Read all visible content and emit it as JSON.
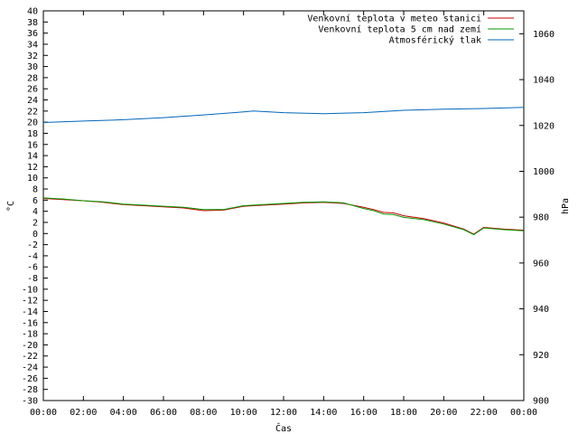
{
  "chart_data": {
    "type": "line",
    "title": "",
    "xlabel": "Čas",
    "ylabel_left": "°C",
    "ylabel_right": "hPa",
    "ylim_left": [
      -30,
      40
    ],
    "ylim_right": [
      900,
      1070
    ],
    "xlim_hours": [
      0,
      24
    ],
    "grid": false,
    "legend_position": "top-right",
    "x_ticks": [
      "00:00",
      "02:00",
      "04:00",
      "06:00",
      "08:00",
      "10:00",
      "12:00",
      "14:00",
      "16:00",
      "18:00",
      "20:00",
      "22:00",
      "00:00"
    ],
    "y_ticks_left": [
      40,
      38,
      36,
      34,
      32,
      30,
      28,
      26,
      24,
      22,
      20,
      18,
      16,
      14,
      12,
      10,
      8,
      6,
      4,
      2,
      0,
      -2,
      -4,
      -6,
      -8,
      -10,
      -12,
      -14,
      -16,
      -18,
      -20,
      -22,
      -24,
      -26,
      -28,
      -30
    ],
    "y_ticks_right": [
      1060,
      1040,
      1020,
      1000,
      980,
      960,
      940,
      920,
      900
    ],
    "series": [
      {
        "name": "Venkovní teplota v meteo stanici",
        "color": "#cc0000",
        "axis": "left",
        "x": [
          "00:00",
          "01:00",
          "02:00",
          "03:00",
          "04:00",
          "05:00",
          "06:00",
          "07:00",
          "08:00",
          "09:00",
          "10:00",
          "11:00",
          "12:00",
          "13:00",
          "14:00",
          "15:00",
          "16:00",
          "16:30",
          "17:00",
          "17:30",
          "18:00",
          "19:00",
          "20:00",
          "21:00",
          "21:30",
          "22:00",
          "23:00",
          "24:00"
        ],
        "values": [
          6.3,
          6.1,
          5.9,
          5.6,
          5.2,
          5.0,
          4.8,
          4.6,
          4.1,
          4.2,
          4.9,
          5.1,
          5.3,
          5.5,
          5.6,
          5.4,
          4.7,
          4.3,
          3.8,
          3.7,
          3.2,
          2.7,
          1.9,
          0.8,
          -0.1,
          1.1,
          0.8,
          0.6
        ]
      },
      {
        "name": "Venkovní teplota 5 cm nad zemí",
        "color": "#009900",
        "axis": "left",
        "x": [
          "00:00",
          "01:00",
          "02:00",
          "03:00",
          "04:00",
          "05:00",
          "06:00",
          "07:00",
          "08:00",
          "09:00",
          "10:00",
          "11:00",
          "12:00",
          "13:00",
          "14:00",
          "15:00",
          "16:00",
          "16:30",
          "17:00",
          "17:30",
          "18:00",
          "19:00",
          "20:00",
          "21:00",
          "21:30",
          "22:00",
          "23:00",
          "24:00"
        ],
        "values": [
          6.4,
          6.2,
          5.9,
          5.7,
          5.3,
          5.1,
          4.9,
          4.7,
          4.3,
          4.3,
          5.0,
          5.2,
          5.4,
          5.6,
          5.7,
          5.5,
          4.5,
          4.1,
          3.5,
          3.4,
          2.9,
          2.5,
          1.7,
          0.7,
          -0.2,
          1.0,
          0.7,
          0.5
        ]
      },
      {
        "name": "Atmosférický tlak",
        "color": "#0066bb",
        "axis": "right",
        "x": [
          "00:00",
          "02:00",
          "04:00",
          "06:00",
          "08:00",
          "10:00",
          "10:30",
          "12:00",
          "14:00",
          "16:00",
          "18:00",
          "20:00",
          "22:00",
          "24:00"
        ],
        "values": [
          1021.3,
          1021.9,
          1022.5,
          1023.4,
          1024.6,
          1025.9,
          1026.3,
          1025.6,
          1025.1,
          1025.6,
          1026.6,
          1027.1,
          1027.4,
          1027.9
        ]
      }
    ]
  }
}
